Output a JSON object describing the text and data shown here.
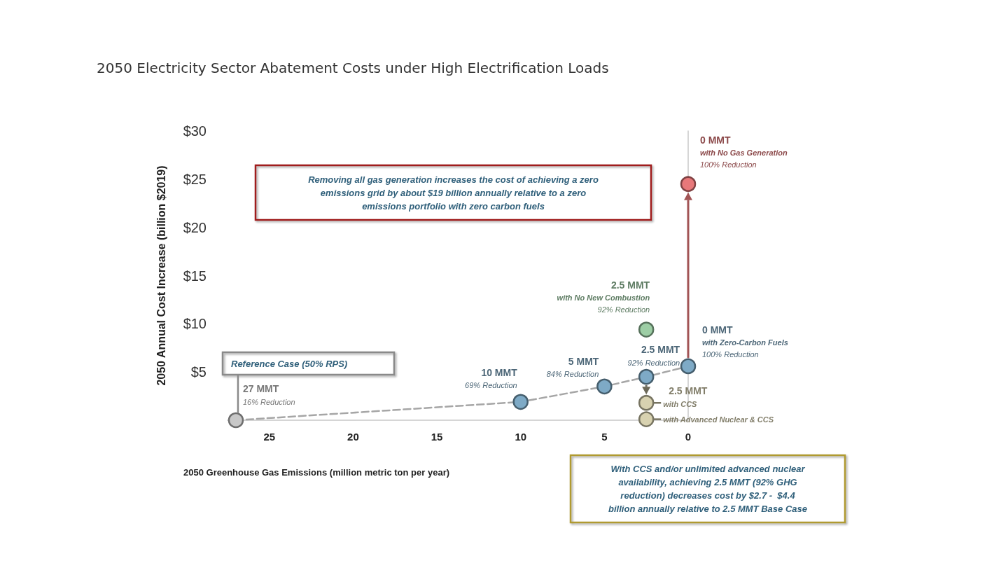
{
  "chart_data": {
    "type": "scatter",
    "title": "2050 Electricity Sector Abatement Costs under High Electrification Loads",
    "xlabel": "2050 Greenhouse Gas Emissions (million metric ton per year)",
    "ylabel": "2050 Annual Cost Increase (billion $2019)",
    "xlim": [
      27.5,
      0
    ],
    "xticks": [
      25,
      20,
      15,
      10,
      5,
      0
    ],
    "ylim": [
      0,
      30
    ],
    "yticks": [
      {
        "value": 5,
        "label": "$5"
      },
      {
        "value": 10,
        "label": "$10"
      },
      {
        "value": 15,
        "label": "$15"
      },
      {
        "value": 20,
        "label": "$20"
      },
      {
        "value": 25,
        "label": "$25"
      },
      {
        "value": 30,
        "label": "$30"
      }
    ],
    "grid": false,
    "series": [
      {
        "type": "line",
        "color": "#a6a6a6",
        "line_style": "dashed",
        "x": [
          27,
          10,
          5,
          2.5,
          0
        ],
        "values": [
          0,
          1.9,
          3.5,
          4.5,
          5.6
        ]
      },
      {
        "color": "#c8c8c8",
        "marker": "circle",
        "x": [
          27
        ],
        "values": [
          0
        ]
      },
      {
        "color": "#7eaac6",
        "marker": "circle",
        "x": [
          10,
          5,
          2.5,
          0
        ],
        "values": [
          1.9,
          3.5,
          4.5,
          5.6
        ]
      },
      {
        "color": "#9dcea5",
        "marker": "circle",
        "x": [
          2.5
        ],
        "values": [
          9.4
        ]
      },
      {
        "color": "#e8787a",
        "marker": "circle",
        "x": [
          0
        ],
        "values": [
          24.5
        ]
      },
      {
        "color": "#d8d2b0",
        "marker": "circle",
        "x": [
          2.5,
          2.5
        ],
        "values": [
          1.8,
          0.1
        ]
      }
    ],
    "annotations": [
      {
        "text": "27 MMT\n16% Reduction",
        "x": 27,
        "y": 0
      },
      {
        "text": "10 MMT\n69% Reduction",
        "x": 10,
        "y": 1.9
      },
      {
        "text": "5 MMT\n84% Reduction",
        "x": 5,
        "y": 3.5
      },
      {
        "text": "2.5 MMT\n92% Reduction",
        "x": 2.5,
        "y": 4.5
      },
      {
        "text": "2.5 MMT\nwith No New Combustion\n92% Reduction",
        "x": 2.5,
        "y": 9.4
      },
      {
        "text": "0 MMT\nwith Zero-Carbon Fuels\n100% Reduction",
        "x": 0,
        "y": 5.6
      },
      {
        "text": "0 MMT\nwith No Gas Generation\n100% Reduction",
        "x": 0,
        "y": 24.5
      },
      {
        "text": "2.5 MMT",
        "x": 2.5,
        "y": 1.8
      },
      {
        "text": "with CCS",
        "x": 2.5,
        "y": 1.8
      },
      {
        "text": "with Advanced Nuclear & CCS",
        "x": 2.5,
        "y": 0.1
      },
      "Reference Case (50% RPS)",
      "Removing all gas generation increases the cost of achieving a zero\nemissions grid by about $19 billion annually relative to a zero\nemissions portfolio with zero carbon fuels",
      "With CCS and/or unlimited advanced nuclear\navailability, achieving 2.5 MMT (92% GHG\nreduction) decreases cost by $2.7 -  $4.4\nbillion annually relative to 2.5 MMT Base Case"
    ]
  }
}
